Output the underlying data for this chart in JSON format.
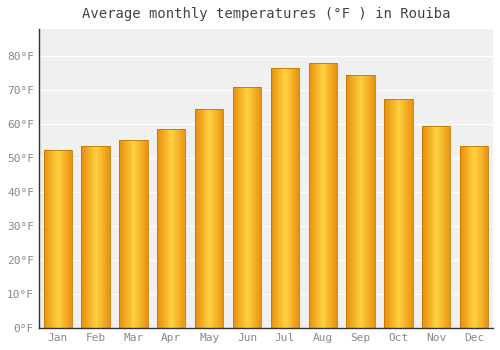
{
  "title": "Average monthly temperatures (°F ) in Rouiba",
  "months": [
    "Jan",
    "Feb",
    "Mar",
    "Apr",
    "May",
    "Jun",
    "Jul",
    "Aug",
    "Sep",
    "Oct",
    "Nov",
    "Dec"
  ],
  "values": [
    52.5,
    53.5,
    55.5,
    58.5,
    64.5,
    71.0,
    76.5,
    78.0,
    74.5,
    67.5,
    59.5,
    53.5
  ],
  "bar_color_left": "#E8900A",
  "bar_color_center": "#FFD040",
  "bar_color_right": "#E8900A",
  "bar_edge_color": "#C07800",
  "ylim": [
    0,
    88
  ],
  "yticks": [
    0,
    10,
    20,
    30,
    40,
    50,
    60,
    70,
    80
  ],
  "ytick_labels": [
    "0°F",
    "10°F",
    "20°F",
    "30°F",
    "40°F",
    "50°F",
    "60°F",
    "70°F",
    "80°F"
  ],
  "background_color": "#ffffff",
  "plot_bg_color": "#f0f0f0",
  "grid_color": "#ffffff",
  "title_fontsize": 10,
  "tick_fontsize": 8,
  "bar_width": 0.75,
  "tick_color": "#888888",
  "spine_color": "#333333"
}
